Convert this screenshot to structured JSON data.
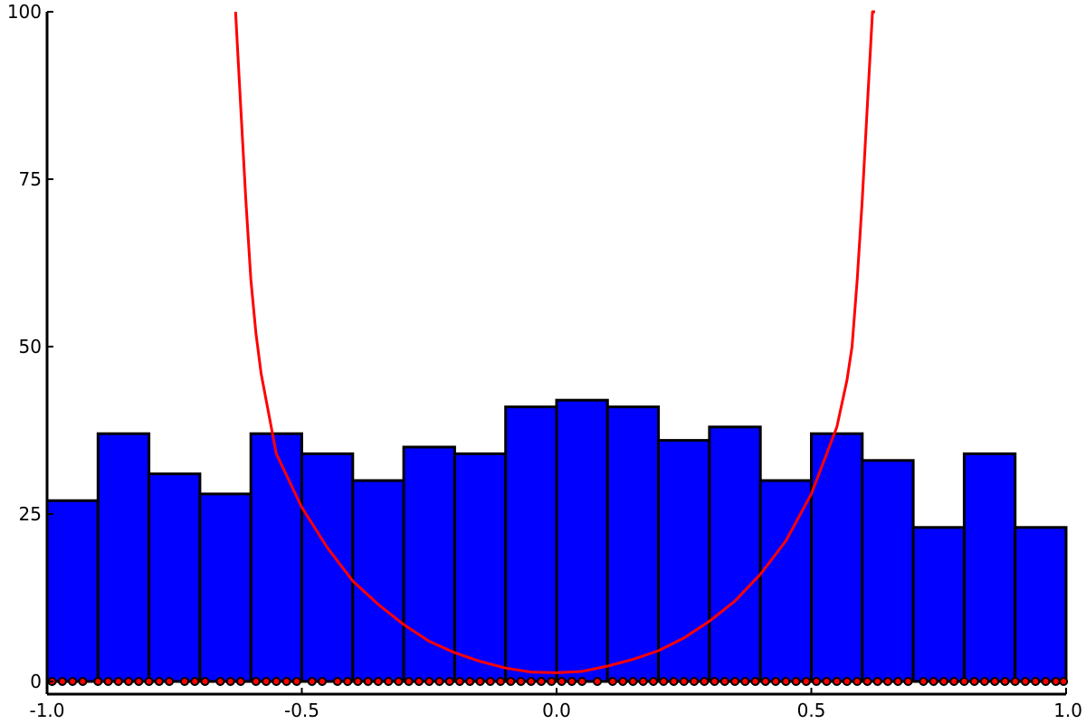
{
  "colors": {
    "bar_fill": "#0000ff",
    "bar_edge": "#000000",
    "curve": "#ff0000",
    "points": "#ff0000",
    "axis": "#000000",
    "background": "#ffffff"
  },
  "chart_data": {
    "type": "bar",
    "title": "",
    "xlabel": "",
    "ylabel": "",
    "xlim": [
      -1.0,
      1.0
    ],
    "ylim": [
      -2,
      100
    ],
    "grid": false,
    "legend": "none",
    "x_ticks": [
      -1.0,
      -0.5,
      0.0,
      0.5,
      1.0
    ],
    "x_tick_labels": [
      "-1.0",
      "-0.5",
      "0.0",
      "0.5",
      "1.0"
    ],
    "y_ticks": [
      0,
      25,
      50,
      75,
      100
    ],
    "y_tick_labels": [
      "0",
      "25",
      "50",
      "75",
      "100"
    ],
    "histogram": {
      "bin_edges": [
        -1.0,
        -0.9,
        -0.8,
        -0.7,
        -0.6,
        -0.5,
        -0.4,
        -0.3,
        -0.2,
        -0.1,
        0.0,
        0.1,
        0.2,
        0.3,
        0.4,
        0.5,
        0.6,
        0.7,
        0.8,
        0.9,
        1.0
      ],
      "counts": [
        27,
        37,
        31,
        28,
        37,
        34,
        30,
        35,
        34,
        41,
        42,
        41,
        36,
        38,
        30,
        37,
        33,
        23,
        34,
        23
      ]
    },
    "curve": {
      "x": [
        -0.63,
        -0.62,
        -0.61,
        -0.6,
        -0.59,
        -0.58,
        -0.57,
        -0.55,
        -0.5,
        -0.45,
        -0.4,
        -0.35,
        -0.3,
        -0.25,
        -0.2,
        -0.15,
        -0.1,
        -0.05,
        0.0,
        0.05,
        0.1,
        0.15,
        0.2,
        0.25,
        0.3,
        0.35,
        0.4,
        0.45,
        0.5,
        0.55,
        0.57,
        0.58,
        0.59,
        0.6,
        0.61,
        0.62,
        0.625
      ],
      "y": [
        100,
        86,
        72,
        60,
        52,
        46,
        42,
        34,
        26,
        20,
        15,
        11.5,
        8.5,
        6,
        4.3,
        3,
        2,
        1.4,
        1.3,
        1.5,
        2.3,
        3.3,
        4.6,
        6.5,
        9,
        12,
        16,
        21,
        28,
        38,
        45,
        50,
        60,
        72,
        86,
        100,
        100
      ]
    },
    "points": {
      "y": 0,
      "x": [
        -0.99,
        -0.97,
        -0.95,
        -0.93,
        -0.9,
        -0.88,
        -0.86,
        -0.84,
        -0.82,
        -0.8,
        -0.78,
        -0.76,
        -0.73,
        -0.71,
        -0.69,
        -0.66,
        -0.64,
        -0.62,
        -0.59,
        -0.57,
        -0.55,
        -0.53,
        -0.51,
        -0.48,
        -0.46,
        -0.43,
        -0.41,
        -0.39,
        -0.37,
        -0.35,
        -0.33,
        -0.31,
        -0.29,
        -0.27,
        -0.25,
        -0.23,
        -0.21,
        -0.19,
        -0.17,
        -0.15,
        -0.13,
        -0.11,
        -0.09,
        -0.07,
        -0.05,
        -0.03,
        -0.01,
        0.01,
        0.03,
        0.05,
        0.08,
        0.11,
        0.13,
        0.15,
        0.17,
        0.19,
        0.21,
        0.23,
        0.25,
        0.27,
        0.29,
        0.31,
        0.33,
        0.35,
        0.37,
        0.39,
        0.41,
        0.43,
        0.45,
        0.47,
        0.49,
        0.51,
        0.53,
        0.55,
        0.57,
        0.59,
        0.61,
        0.63,
        0.65,
        0.67,
        0.69,
        0.72,
        0.74,
        0.76,
        0.78,
        0.8,
        0.82,
        0.84,
        0.86,
        0.88,
        0.9,
        0.92,
        0.94,
        0.96,
        0.98,
        0.995
      ]
    }
  }
}
